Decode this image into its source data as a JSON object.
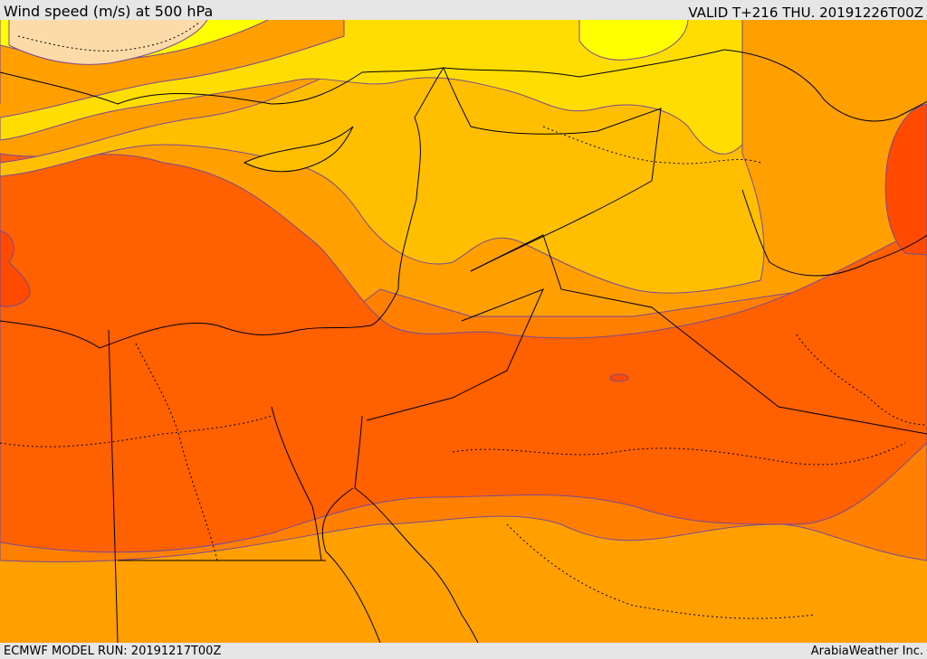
{
  "header": {
    "title": "Wind speed (m/s) at 500 hPa",
    "valid": "VALID T+216 THU. 20191226T00Z"
  },
  "footer": {
    "model_run": "ECMWF MODEL RUN: 20191217T00Z",
    "credit": "ArabiaWeather Inc."
  },
  "map": {
    "layer": "Wind speed",
    "colors": {
      "very_light": "#fddba8",
      "yellow": "#ffff00",
      "gold": "#ffdd00",
      "amber": "#ffbf00",
      "light_orange": "#ff9f00",
      "orange": "#ff8000",
      "deep_orange": "#ff6000",
      "red_orange": "#ff4a00",
      "contour": "#7b4a93",
      "border": "#000000"
    }
  }
}
